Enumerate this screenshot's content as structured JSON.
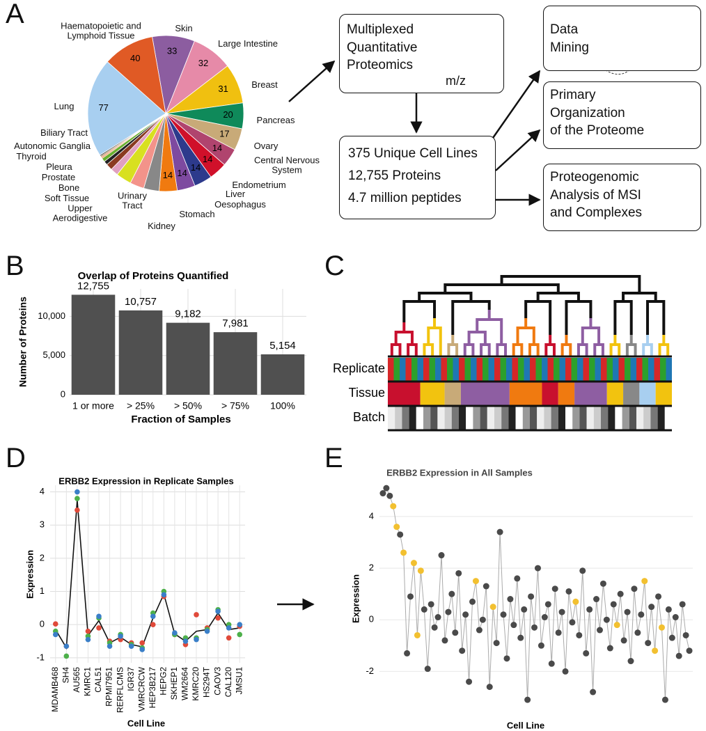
{
  "panels": [
    "A",
    "B",
    "C",
    "D",
    "E"
  ],
  "diagram": {
    "proteomics": "Multiplexed\nQuantitative\nProteomics",
    "mz": "m/z",
    "summary": [
      "375 Unique Cell Lines",
      "12,755 Proteins",
      "4.7 million peptides"
    ],
    "outputs": [
      "Data\nMining",
      "Primary\nOrganization\nof the Proteome",
      "Proteogenomic\nAnalysis of MSI\nand Complexes"
    ]
  },
  "heatmap": {
    "rows": [
      "Replicate",
      "Tissue",
      "Batch"
    ]
  },
  "chart_data": [
    {
      "type": "pie",
      "categories": [
        "Skin",
        "Large Intestine",
        "Breast",
        "Pancreas",
        "Ovary",
        "Central Nervous\nSystem",
        "Endometrium",
        "Liver",
        "Oesophagus",
        "Stomach",
        "Kidney",
        "Urinary\nTract",
        "Upper\nAerodigestive",
        "Soft Tissue",
        "Bone",
        "Prostate",
        "Pleura",
        "Thyroid",
        "Autonomic Ganglia",
        "Biliary Tract",
        "Lung",
        "Haematopoietic and\nLymphoid Tissue"
      ],
      "values": [
        33,
        32,
        31,
        20,
        17,
        14,
        14,
        14,
        14,
        14,
        12,
        11,
        12,
        6,
        5,
        3,
        3,
        1,
        1,
        1,
        77,
        40
      ],
      "colors": [
        "#8c5da0",
        "#e68aa8",
        "#f0c010",
        "#0f8a5a",
        "#c8aa78",
        "#b0446e",
        "#d0102a",
        "#2d3a8c",
        "#7e4aa0",
        "#f07a10",
        "#888888",
        "#f3938a",
        "#d8e020",
        "#e0a0c0",
        "#8a3a20",
        "#222222",
        "#6ab030",
        "#f07030",
        "#b07030",
        "#333333",
        "#a8cff0",
        "#e05a25"
      ]
    },
    {
      "type": "bar",
      "title": "Overlap of Proteins Quantified",
      "x_label": "Fraction of Samples",
      "y_label": "Number of Proteins",
      "categories": [
        "1 or more",
        "> 25%",
        "> 50%",
        "> 75%",
        "100%"
      ],
      "values": [
        12755,
        10757,
        9182,
        7981,
        5154
      ],
      "value_labels": [
        "12,755",
        "10,757",
        "9,182",
        "7,981",
        "5,154"
      ],
      "color": "#505050",
      "ylim": [
        0,
        13500
      ],
      "yticks": [
        0,
        {
          "value": 5000,
          "label": "5,000"
        },
        {
          "value": 10000,
          "label": "10,000"
        }
      ],
      "grid": true
    },
    {
      "type": "line",
      "title": "ERBB2 Expression in Replicate Samples",
      "x_label": "Cell Line",
      "y_label": "Expression",
      "categories": [
        "MDAMB468",
        "SH4",
        "AU565",
        "KMRC1",
        "CAL51",
        "RPMI7951",
        "RERFLCMS",
        "IGR37",
        "VMRCRCW",
        "HEP3B217",
        "HEPG2",
        "SKHEP1",
        "WM2664",
        "KMRC20",
        "HS294T",
        "CAOV3",
        "CAL120",
        "JMSU1"
      ],
      "series": [
        {
          "color": "#e04a3a",
          "mode": "markers",
          "values": [
            0.02,
            -0.65,
            3.45,
            -0.2,
            -0.1,
            -0.5,
            -0.45,
            -0.55,
            -0.55,
            0.0,
            0.85,
            -0.3,
            -0.6,
            0.3,
            -0.1,
            0.2,
            -0.4,
            -0.05
          ]
        },
        {
          "color": "#4db04a",
          "mode": "markers",
          "values": [
            -0.2,
            -0.95,
            3.8,
            -0.35,
            0.2,
            -0.55,
            -0.3,
            -0.6,
            -0.7,
            0.35,
            1.0,
            -0.3,
            -0.4,
            -0.4,
            -0.15,
            0.45,
            0.0,
            -0.3
          ]
        },
        {
          "color": "#3a7fc8",
          "mode": "markers",
          "values": [
            -0.3,
            -0.65,
            4.0,
            -0.45,
            0.25,
            -0.65,
            -0.35,
            -0.65,
            -0.75,
            0.25,
            0.9,
            -0.25,
            -0.5,
            -0.45,
            -0.2,
            0.4,
            -0.1,
            0.0
          ]
        },
        {
          "color": "#111111",
          "mode": "line",
          "values": [
            -0.15,
            -0.7,
            3.75,
            -0.33,
            0.12,
            -0.55,
            -0.38,
            -0.6,
            -0.67,
            0.2,
            0.92,
            -0.28,
            -0.5,
            -0.2,
            -0.15,
            0.35,
            -0.15,
            -0.1
          ]
        }
      ],
      "ylim": [
        -1.15,
        4.2
      ],
      "yticks": [
        -1,
        0,
        1,
        2,
        3,
        4
      ],
      "grid": true
    },
    {
      "type": "scatter",
      "title": "ERBB2 Expression in All Samples",
      "x_label": "Cell Line",
      "y_label": "Expression",
      "x": [
        1,
        2,
        3,
        4,
        5,
        6,
        7,
        8,
        9,
        10,
        11,
        12,
        13,
        14,
        15,
        16,
        17,
        18,
        19,
        20,
        21,
        22,
        23,
        24,
        25,
        26,
        27,
        28,
        29,
        30,
        31,
        32,
        33,
        34,
        35,
        36,
        37,
        38,
        39,
        40,
        41,
        42,
        43,
        44,
        45,
        46,
        47,
        48,
        49,
        50,
        51,
        52,
        53,
        54,
        55,
        56,
        57,
        58,
        59,
        60,
        61,
        62,
        63,
        64,
        65,
        66,
        67,
        68,
        69,
        70,
        71,
        72,
        73,
        74,
        75,
        76,
        77,
        78,
        79,
        80,
        81,
        82,
        83,
        84,
        85,
        86,
        87,
        88,
        89,
        90
      ],
      "values": [
        4.9,
        5.1,
        4.8,
        4.4,
        3.6,
        3.3,
        2.6,
        -1.3,
        0.9,
        2.2,
        -0.6,
        1.9,
        0.4,
        -1.9,
        0.6,
        -0.3,
        0.1,
        2.5,
        -0.8,
        0.3,
        1.0,
        -0.5,
        1.8,
        -1.2,
        0.2,
        -2.4,
        0.7,
        1.5,
        -0.4,
        0.0,
        1.3,
        -2.6,
        0.5,
        -0.9,
        3.4,
        0.2,
        -1.5,
        0.8,
        -0.2,
        1.6,
        -0.7,
        0.4,
        -3.1,
        0.9,
        -0.3,
        2.0,
        -1.0,
        0.1,
        0.6,
        -1.7,
        1.2,
        -0.5,
        0.3,
        -2.0,
        1.1,
        -0.1,
        0.7,
        -0.6,
        1.9,
        -1.3,
        0.4,
        -2.8,
        0.8,
        -0.4,
        1.4,
        0.0,
        -1.1,
        0.6,
        -0.2,
        1.0,
        -0.8,
        0.3,
        -1.6,
        1.2,
        -0.5,
        0.2,
        1.5,
        -0.9,
        0.5,
        -1.2,
        0.9,
        -0.3,
        -3.1,
        0.4,
        -0.7,
        0.1,
        -1.4,
        0.6,
        -0.6,
        -1.2
      ],
      "colors": [
        "#4a4a4a",
        "#4a4a4a",
        "#4a4a4a",
        "#f2c030",
        "#f2c030",
        "#4a4a4a",
        "#f2c030",
        "#4a4a4a",
        "#4a4a4a",
        "#f2c030",
        "#f2c030",
        "#f2c030",
        "#4a4a4a",
        "#4a4a4a",
        "#4a4a4a",
        "#4a4a4a",
        "#4a4a4a",
        "#4a4a4a",
        "#4a4a4a",
        "#4a4a4a",
        "#4a4a4a",
        "#4a4a4a",
        "#4a4a4a",
        "#4a4a4a",
        "#4a4a4a",
        "#4a4a4a",
        "#4a4a4a",
        "#f2c030",
        "#4a4a4a",
        "#4a4a4a",
        "#4a4a4a",
        "#4a4a4a",
        "#f2c030",
        "#4a4a4a",
        "#4a4a4a",
        "#4a4a4a",
        "#4a4a4a",
        "#4a4a4a",
        "#4a4a4a",
        "#4a4a4a",
        "#4a4a4a",
        "#4a4a4a",
        "#4a4a4a",
        "#4a4a4a",
        "#4a4a4a",
        "#4a4a4a",
        "#4a4a4a",
        "#4a4a4a",
        "#4a4a4a",
        "#4a4a4a",
        "#4a4a4a",
        "#4a4a4a",
        "#4a4a4a",
        "#4a4a4a",
        "#4a4a4a",
        "#4a4a4a",
        "#f2c030",
        "#4a4a4a",
        "#4a4a4a",
        "#4a4a4a",
        "#4a4a4a",
        "#4a4a4a",
        "#4a4a4a",
        "#4a4a4a",
        "#4a4a4a",
        "#4a4a4a",
        "#4a4a4a",
        "#4a4a4a",
        "#f2c030",
        "#4a4a4a",
        "#4a4a4a",
        "#4a4a4a",
        "#4a4a4a",
        "#4a4a4a",
        "#4a4a4a",
        "#4a4a4a",
        "#f2c030",
        "#4a4a4a",
        "#4a4a4a",
        "#f2c030",
        "#4a4a4a",
        "#f2c030",
        "#4a4a4a",
        "#4a4a4a",
        "#4a4a4a",
        "#4a4a4a",
        "#4a4a4a",
        "#4a4a4a",
        "#4a4a4a",
        "#4a4a4a"
      ],
      "xlim": [
        0,
        91
      ],
      "ylim": [
        -3.5,
        5.4
      ],
      "yticks": [
        -2,
        0,
        2,
        4
      ],
      "grid": true
    }
  ]
}
